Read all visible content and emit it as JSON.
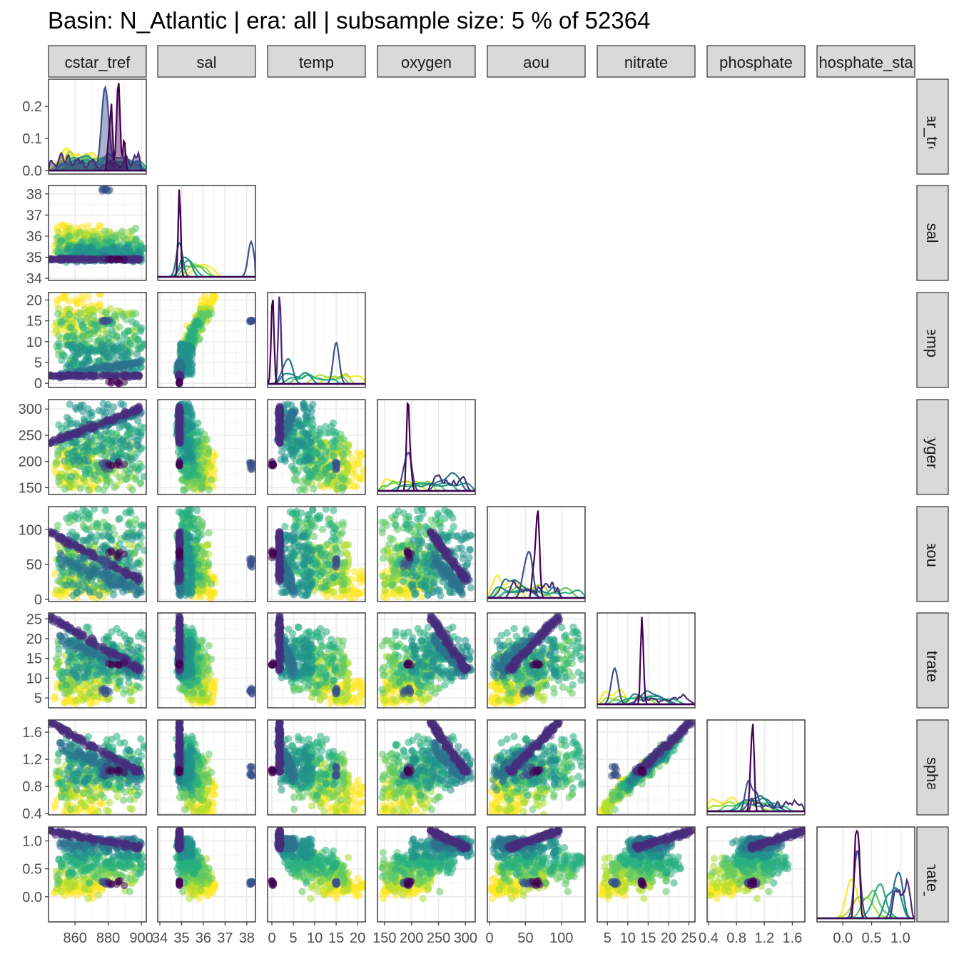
{
  "title": "Basin: N_Atlantic | era: all | subsample size: 5 % of 52364",
  "colors": {
    "panel_border": "#333333",
    "strip_fill": "#d9d9d9",
    "grid": "#ebebeb",
    "tick_text": "#4d4d4d",
    "palette": [
      "#440154",
      "#472d7b",
      "#3b528b",
      "#2c728e",
      "#21918c",
      "#28ae80",
      "#5ec962",
      "#addc30",
      "#fde725"
    ]
  },
  "chart_data": {
    "type": "scatter-matrix",
    "layout": "lower-triangle pairs plot with density curves on diagonal",
    "variables": [
      "cstar_tref",
      "sal",
      "temp",
      "oxygen",
      "aou",
      "nitrate",
      "phosphate",
      "phosphate_star"
    ],
    "column_strip_labels": [
      "cstar_tref",
      "sal",
      "temp",
      "oxygen",
      "aou",
      "nitrate",
      "phosphate",
      "hosphate_sta"
    ],
    "row_strip_labels": [
      "cstar_tref",
      "sal",
      "temp",
      "oxygen",
      "aou",
      "nitrate",
      "phosphate",
      "hosphate_sta"
    ],
    "x_tick_labels": [
      [
        "860",
        "880",
        "900"
      ],
      [
        "34",
        "35",
        "36",
        "37",
        "38"
      ],
      [
        "0",
        "5",
        "10",
        "15",
        "20"
      ],
      [
        "150",
        "200",
        "250",
        "300"
      ],
      [
        "0",
        "50",
        "100"
      ],
      [
        "5",
        "10",
        "15",
        "20",
        "25"
      ],
      [
        "0.4",
        "0.8",
        "1.2",
        "1.6"
      ],
      [
        "0.0",
        "0.5",
        "1.0"
      ]
    ],
    "y_tick_labels": [
      [
        "0.0",
        "0.1",
        "0.2"
      ],
      [
        "34",
        "35",
        "36",
        "37",
        "38"
      ],
      [
        "0",
        "5",
        "10",
        "15",
        "20"
      ],
      [
        "150",
        "200",
        "250",
        "300"
      ],
      [
        "0",
        "50",
        "100"
      ],
      [
        "5",
        "10",
        "15",
        "20",
        "25"
      ],
      [
        "0.4",
        "0.8",
        "1.2",
        "1.6"
      ],
      [
        "0.0",
        "0.5",
        "1.0"
      ]
    ],
    "ranges": {
      "cstar_tref": [
        844,
        903
      ],
      "sal": [
        33.9,
        38.4
      ],
      "temp": [
        -1,
        21.8
      ],
      "oxygen": [
        137,
        318
      ],
      "aou": [
        -3,
        133
      ],
      "nitrate": [
        2.5,
        26.5
      ],
      "phosphate": [
        0.38,
        1.78
      ],
      "phosphate_star": [
        -0.45,
        1.25
      ]
    },
    "first_density_ylim": [
      0,
      0.285
    ],
    "color_encoding": "viridis palette by group",
    "point_opacity": 0.55,
    "grid": true
  }
}
